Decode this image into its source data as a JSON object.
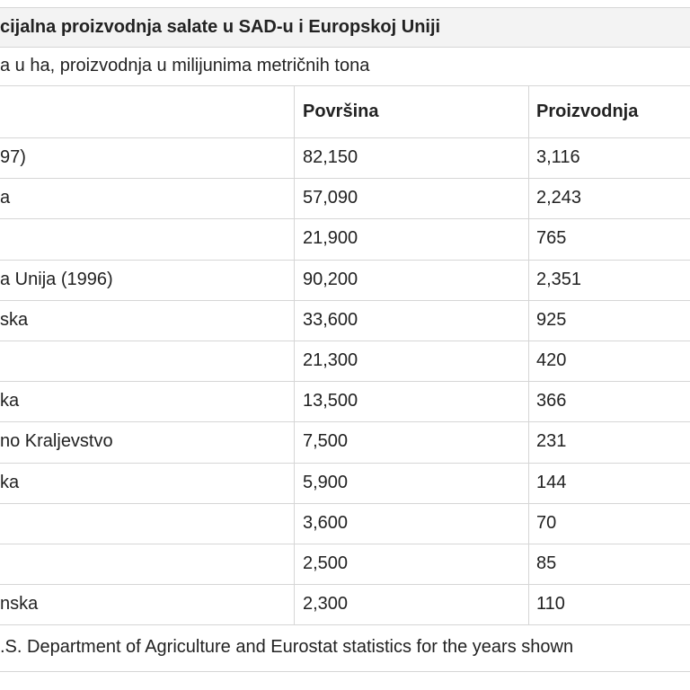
{
  "title": "cijalna proizvodnja salate u SAD-u i Europskoj Uniji",
  "subtitle": "a u ha, proizvodnja u milijunima metričnih tona",
  "table": {
    "header": [
      "Površina",
      "Proizvodnja"
    ],
    "rows": [
      [
        "97)",
        "82,150",
        "3,116"
      ],
      [
        "a",
        "57,090",
        "2,243"
      ],
      [
        null,
        "21,900",
        "765"
      ],
      [
        "a Unija (1996)",
        "90,200",
        "2,351"
      ],
      [
        "ska",
        "33,600",
        "925"
      ],
      [
        null,
        "21,300",
        "420"
      ],
      [
        "ka",
        "13,500",
        "366"
      ],
      [
        "no Kraljevstvo",
        "7,500",
        "231"
      ],
      [
        "ka",
        "5,900",
        "144"
      ],
      [
        null,
        "3,600",
        "70"
      ],
      [
        null,
        "2,500",
        "85"
      ],
      [
        "nska",
        "2,300",
        "110"
      ]
    ]
  },
  "footer": ".S. Department of Agriculture and Eurostat statistics for the years shown"
}
